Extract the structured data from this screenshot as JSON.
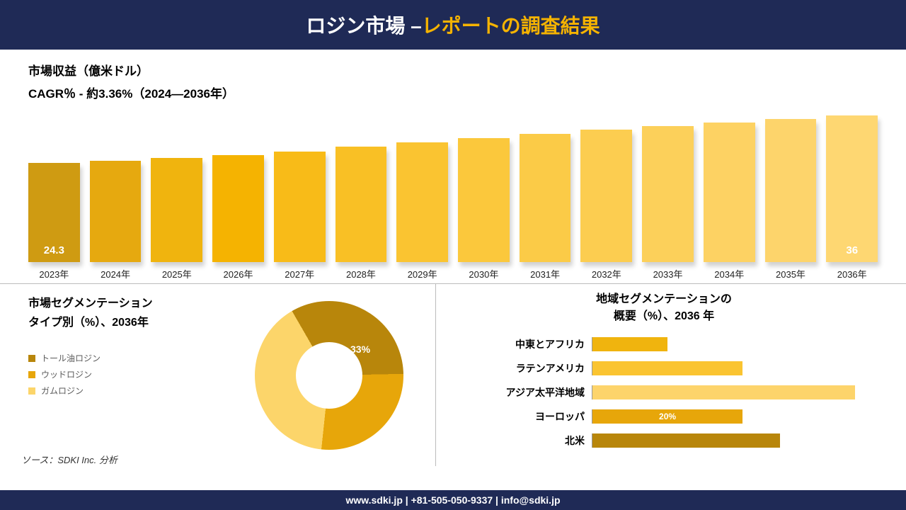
{
  "colors": {
    "header_bg": "#1f2a56",
    "footer_bg": "#1f2a56",
    "accent": "#f5b301",
    "bar_palette": [
      "#cf9b12",
      "#e6a90f",
      "#f0b40e",
      "#f5b301",
      "#f8bb18",
      "#f9c025",
      "#fac431",
      "#fbc83c",
      "#fbcb47",
      "#fccd50",
      "#fcd05a",
      "#fdd263",
      "#fdd46b",
      "#fed772"
    ],
    "donut_colors": [
      "#b8860b",
      "#e7a60a",
      "#fcd56a"
    ],
    "hbar_colors": [
      "#f0b40e",
      "#fac431",
      "#fdd46b",
      "#e7a60a",
      "#b8860b"
    ]
  },
  "header": {
    "title_part1": "ロジン市場 –",
    "title_part2": "レポートの調査結果"
  },
  "footer": {
    "text": "www.sdki.jp | +81-505-050-9337 | info@sdki.jp"
  },
  "bar_chart": {
    "line1": "市場収益（億米ドル）",
    "line2": "CAGR％ - 約3.36%（2024―2036年）",
    "categories": [
      "2023年",
      "2024年",
      "2025年",
      "2026年",
      "2027年",
      "2028年",
      "2029年",
      "2030年",
      "2031年",
      "2032年",
      "2033年",
      "2034年",
      "2035年",
      "2036年"
    ],
    "values": [
      24.3,
      24.9,
      25.6,
      26.3,
      27.2,
      28.3,
      29.4,
      30.5,
      31.5,
      32.5,
      33.4,
      34.3,
      35.2,
      36
    ],
    "max_value": 40,
    "show_value_index": {
      "0": "24.3",
      "13": "36"
    },
    "bar_font_color": "#ffffff",
    "label_fontsize": 13
  },
  "donut": {
    "title_l1": "市場セグメンテーション",
    "title_l2": "タイプ別（%）、2036年",
    "legend": [
      "トール油ロジン",
      "ウッドロジン",
      "ガムロジン"
    ],
    "slices": [
      33,
      27,
      40
    ],
    "show_value": "33%",
    "inner_ratio": 0.45
  },
  "region": {
    "title_l1": "地域セグメンテーションの",
    "title_l2": "概要（%）、2036 年",
    "rows": [
      {
        "label": "中東とアフリカ",
        "value": 10,
        "show": ""
      },
      {
        "label": "ラテンアメリカ",
        "value": 20,
        "show": ""
      },
      {
        "label": "アジア太平洋地域",
        "value": 35,
        "show": ""
      },
      {
        "label": "ヨーロッパ",
        "value": 20,
        "show": "20%"
      },
      {
        "label": "北米",
        "value": 25,
        "show": ""
      }
    ],
    "max": 38
  },
  "source": "ソース：SDKI Inc. 分析"
}
